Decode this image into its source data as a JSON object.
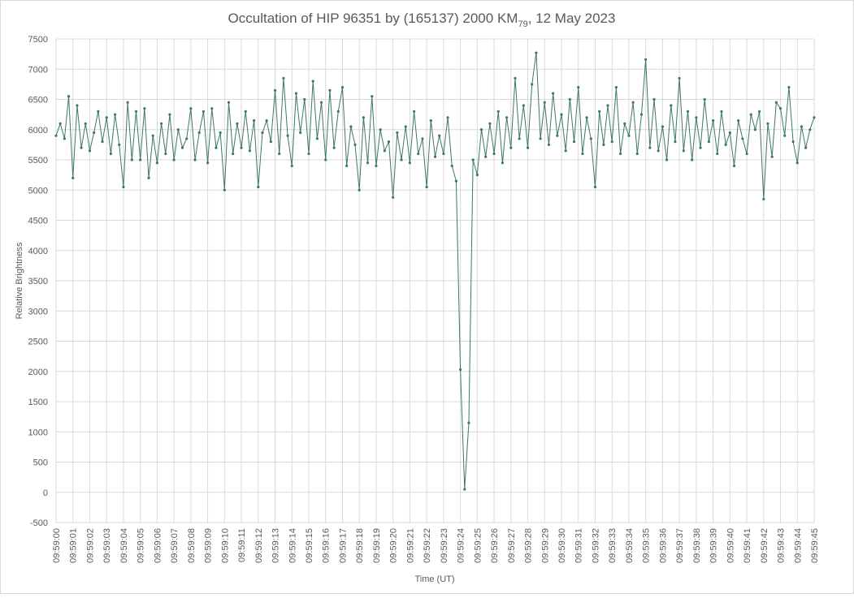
{
  "chart_data": {
    "type": "line",
    "title": [
      "Occultation of HIP 96351 by (165137) 2000 KM",
      "79",
      ", 12 May 2023"
    ],
    "xlabel": "Time (UT)",
    "ylabel": "Relative Brightness",
    "ylim": [
      -500,
      7500
    ],
    "yticks": [
      -500,
      0,
      500,
      1000,
      1500,
      2000,
      2500,
      3000,
      3500,
      4000,
      4500,
      5000,
      5500,
      6000,
      6500,
      7000,
      7500
    ],
    "grid": true,
    "categories": [
      "09:59:00",
      null,
      null,
      null,
      "09:59:01",
      null,
      null,
      null,
      "09:59:02",
      null,
      null,
      null,
      "09:59:03",
      null,
      null,
      null,
      "09:59:04",
      null,
      null,
      null,
      "09:59:05",
      null,
      null,
      null,
      "09:59:06",
      null,
      null,
      null,
      "09:59:07",
      null,
      null,
      null,
      "09:59:08",
      null,
      null,
      null,
      "09:59:09",
      null,
      null,
      null,
      "09:59:10",
      null,
      null,
      null,
      "09:59:11",
      null,
      null,
      null,
      "09:59:12",
      null,
      null,
      null,
      "09:59:13",
      null,
      null,
      null,
      "09:59:14",
      null,
      null,
      null,
      "09:59:15",
      null,
      null,
      null,
      "09:59:16",
      null,
      null,
      null,
      "09:59:17",
      null,
      null,
      null,
      "09:59:18",
      null,
      null,
      null,
      "09:59:19",
      null,
      null,
      null,
      "09:59:20",
      null,
      null,
      null,
      "09:59:21",
      null,
      null,
      null,
      "09:59:22",
      null,
      null,
      null,
      "09:59:23",
      null,
      null,
      null,
      "09:59:24",
      null,
      null,
      null,
      "09:59:25",
      null,
      null,
      null,
      "09:59:26",
      null,
      null,
      null,
      "09:59:27",
      null,
      null,
      null,
      "09:59:28",
      null,
      null,
      null,
      "09:59:29",
      null,
      null,
      null,
      "09:59:30",
      null,
      null,
      null,
      "09:59:31",
      null,
      null,
      null,
      "09:59:32",
      null,
      null,
      null,
      "09:59:33",
      null,
      null,
      null,
      "09:59:34",
      null,
      null,
      null,
      "09:59:35",
      null,
      null,
      null,
      "09:59:36",
      null,
      null,
      null,
      "09:59:37",
      null,
      null,
      null,
      "09:59:38",
      null,
      null,
      null,
      "09:59:39",
      null,
      null,
      null,
      "09:59:40",
      null,
      null,
      null,
      "09:59:41",
      null,
      null,
      null,
      "09:59:42",
      null,
      null,
      null,
      "09:59:43",
      null,
      null,
      null,
      "09:59:44",
      null,
      null,
      null,
      "09:59:45"
    ],
    "series": [
      {
        "name": "Relative Brightness",
        "color": "#3d7a5e",
        "values": [
          5900,
          6100,
          5850,
          6550,
          5200,
          6400,
          5700,
          6100,
          5650,
          5950,
          6300,
          5800,
          6200,
          5600,
          6250,
          5750,
          5050,
          6450,
          5500,
          6300,
          5500,
          6350,
          5200,
          5900,
          5450,
          6100,
          5600,
          6250,
          5500,
          6000,
          5700,
          5850,
          6350,
          5500,
          5950,
          6300,
          5450,
          6350,
          5700,
          5950,
          5000,
          6450,
          5600,
          6100,
          5700,
          6300,
          5650,
          6150,
          5050,
          5950,
          6150,
          5800,
          6650,
          5600,
          6850,
          5900,
          5400,
          6600,
          5950,
          6500,
          5600,
          6800,
          5850,
          6450,
          5500,
          6650,
          5700,
          6300,
          6700,
          5400,
          6050,
          5750,
          5000,
          6200,
          5450,
          6550,
          5400,
          6000,
          5650,
          5800,
          4880,
          5950,
          5500,
          6050,
          5450,
          6300,
          5600,
          5850,
          5050,
          6150,
          5550,
          5900,
          5600,
          6200,
          5400,
          5150,
          2030,
          50,
          1150,
          5500,
          5250,
          6000,
          5550,
          6100,
          5600,
          6300,
          5450,
          6200,
          5700,
          6850,
          5850,
          6400,
          5700,
          6750,
          7270,
          5850,
          6450,
          5750,
          6600,
          5900,
          6250,
          5650,
          6500,
          5800,
          6700,
          5600,
          6200,
          5850,
          5050,
          6300,
          5750,
          6400,
          5800,
          6700,
          5600,
          6100,
          5900,
          6450,
          5600,
          6250,
          7160,
          5700,
          6500,
          5650,
          6050,
          5500,
          6400,
          5800,
          6850,
          5650,
          6300,
          5500,
          6200,
          5700,
          6500,
          5800,
          6150,
          5600,
          6300,
          5750,
          5950,
          5400,
          6150,
          5850,
          5600,
          6250,
          6000,
          6300,
          4850,
          6100,
          5550,
          6450,
          6350,
          5900,
          6700,
          5800,
          5450,
          6050,
          5700,
          6000,
          6200
        ]
      }
    ]
  }
}
